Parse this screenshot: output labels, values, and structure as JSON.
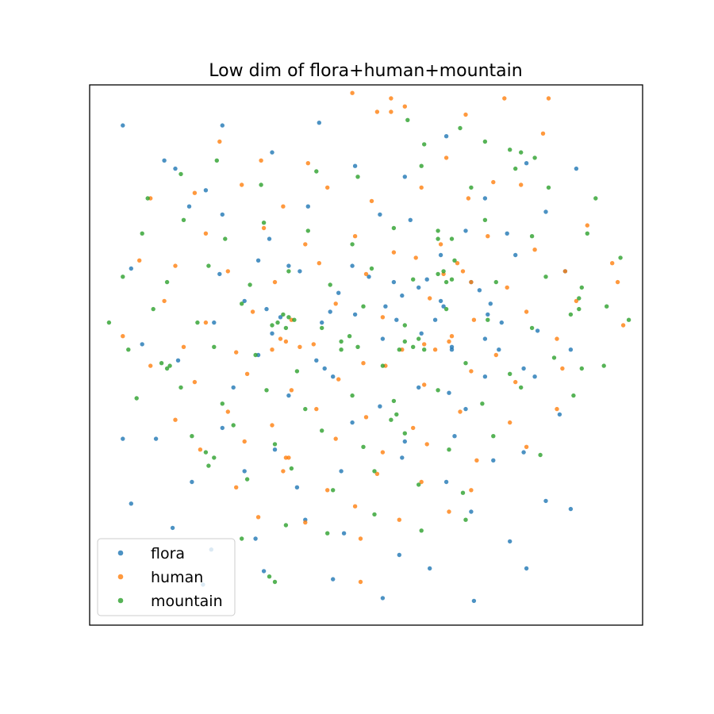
{
  "chart_data": {
    "type": "scatter",
    "title": "Low dim of flora+human+mountain",
    "xlabel": "",
    "ylabel": "",
    "xlim": [
      -1,
      1
    ],
    "ylim": [
      -1,
      1
    ],
    "grid": false,
    "axis_ticks": false,
    "legend_position": "lower-left",
    "series": [
      {
        "name": "flora",
        "color": "#1f77b4",
        "x": [
          -0.88,
          -0.73,
          -0.58,
          -0.34,
          -0.17,
          -0.04,
          0.14,
          0.29,
          0.43,
          0.58,
          0.76,
          0.16,
          -0.64,
          -0.52,
          -0.35,
          -0.21,
          0.05,
          0.36,
          0.51,
          0.65,
          -0.85,
          -0.53,
          -0.39,
          -0.24,
          0.01,
          0.38,
          0.54,
          0.72,
          -0.44,
          -0.13,
          0.28,
          0.49,
          -0.81,
          -0.68,
          -0.34,
          -0.15,
          0.06,
          0.31,
          0.43,
          0.61,
          0.74,
          -0.48,
          -0.28,
          -0.12,
          0.05,
          0.19,
          0.36,
          0.57,
          -0.76,
          -0.52,
          -0.33,
          -0.05,
          0.14,
          0.32,
          0.57,
          0.7,
          -0.63,
          -0.44,
          -0.25,
          -0.09,
          0.13,
          0.29,
          0.46,
          0.65,
          -0.85,
          -0.7,
          -0.56,
          -0.4,
          -0.22,
          -0.08,
          0.12,
          0.38,
          0.52,
          0.74,
          -0.59,
          -0.37,
          -0.12,
          0.06,
          0.23,
          0.39,
          0.58,
          -0.28,
          -0.1,
          0.1,
          0.27,
          0.45,
          0.62,
          -0.39,
          -0.18,
          0.2,
          0.43,
          -0.55,
          -0.36,
          -0.04,
          0.13,
          0.3,
          -0.31,
          -0.16,
          0.07,
          0.22,
          0.27,
          0.41,
          0.44,
          0.19,
          0.25,
          -0.05,
          0.11,
          0.31,
          0.48,
          -0.52,
          -0.69,
          -0.88
        ],
        "y": [
          0.85,
          0.72,
          0.61,
          0.75,
          0.86,
          0.7,
          0.66,
          0.81,
          0.58,
          0.71,
          0.69,
          0.5,
          0.55,
          0.52,
          0.43,
          0.55,
          0.52,
          0.46,
          0.45,
          0.53,
          0.32,
          0.3,
          0.35,
          0.31,
          0.29,
          0.27,
          0.37,
          0.31,
          0.2,
          0.16,
          0.18,
          0.12,
          0.04,
          -0.02,
          0.08,
          -0.05,
          0.06,
          0.03,
          0.06,
          -0.08,
          0.02,
          -0.12,
          -0.15,
          -0.08,
          -0.19,
          -0.12,
          -0.2,
          -0.05,
          -0.31,
          -0.27,
          -0.35,
          -0.25,
          -0.32,
          -0.3,
          -0.36,
          -0.22,
          -0.47,
          -0.43,
          -0.49,
          -0.43,
          -0.38,
          -0.47,
          -0.39,
          -0.54,
          -0.55,
          -0.64,
          -0.72,
          -0.68,
          -0.61,
          -0.66,
          -0.74,
          -0.58,
          -0.69,
          -0.57,
          -0.85,
          -0.8,
          -0.83,
          -0.9,
          -0.79,
          -0.91,
          -0.79,
          0.33,
          0.23,
          0.27,
          0.37,
          0.19,
          0.09,
          0.0,
          -0.02,
          0.08,
          -0.08,
          0.12,
          0.17,
          0.15,
          0.22,
          -0.14,
          0.14,
          0.12,
          0.18,
          0.28,
          0.2,
          0.24,
          0.15,
          0.25,
          0.13,
          0.33,
          0.13,
          0.02,
          0.02,
          0.85,
          0.69,
          -0.31
        ]
      },
      {
        "name": "human",
        "color": "#ff7f0e",
        "x": [
          -0.05,
          0.09,
          0.36,
          0.64,
          -0.53,
          -0.38,
          -0.21,
          0.29,
          0.46,
          -0.78,
          -0.62,
          -0.45,
          -0.3,
          -0.14,
          0.02,
          0.2,
          0.37,
          0.56,
          -0.58,
          -0.37,
          -0.22,
          -0.04,
          0.1,
          0.27,
          0.44,
          0.61,
          0.8,
          -0.82,
          -0.69,
          -0.5,
          -0.33,
          -0.17,
          0.0,
          0.18,
          0.35,
          0.51,
          0.72,
          0.89,
          -0.73,
          -0.58,
          -0.41,
          -0.27,
          -0.11,
          0.06,
          0.23,
          0.39,
          0.58,
          0.76,
          -0.88,
          -0.66,
          -0.47,
          -0.31,
          -0.19,
          -0.01,
          0.13,
          0.3,
          0.47,
          0.69,
          -0.78,
          -0.62,
          -0.43,
          -0.27,
          -0.1,
          0.07,
          0.21,
          0.38,
          0.54,
          0.71,
          -0.69,
          -0.5,
          -0.34,
          -0.18,
          0.0,
          0.17,
          0.34,
          0.52,
          0.69,
          -0.6,
          -0.44,
          -0.28,
          -0.11,
          0.06,
          0.22,
          0.4,
          0.58,
          -0.47,
          -0.3,
          -0.14,
          0.04,
          0.2,
          0.38,
          -0.39,
          -0.22,
          -0.04,
          0.12,
          0.3,
          -0.02,
          0.28,
          0.33,
          0.38,
          0.21,
          0.25,
          0.31,
          -0.24,
          -0.29,
          -0.34,
          0.14,
          0.09,
          0.04,
          0.5,
          0.93,
          0.66,
          -0.02,
          -0.29,
          0.91
        ],
        "y": [
          0.97,
          0.9,
          0.89,
          0.82,
          0.79,
          0.72,
          0.71,
          0.73,
          0.64,
          0.58,
          0.6,
          0.63,
          0.55,
          0.62,
          0.57,
          0.62,
          0.58,
          0.63,
          0.45,
          0.47,
          0.41,
          0.44,
          0.38,
          0.41,
          0.44,
          0.39,
          0.48,
          0.35,
          0.33,
          0.31,
          0.27,
          0.34,
          0.3,
          0.36,
          0.31,
          0.25,
          0.31,
          0.34,
          0.2,
          0.12,
          0.16,
          0.13,
          0.19,
          0.14,
          0.21,
          0.13,
          0.16,
          0.2,
          0.07,
          0.03,
          0.01,
          0.06,
          0.04,
          -0.03,
          0.02,
          0.05,
          0.0,
          0.06,
          -0.04,
          -0.1,
          -0.07,
          -0.13,
          -0.09,
          -0.04,
          -0.11,
          -0.06,
          -0.1,
          -0.05,
          -0.24,
          -0.21,
          -0.26,
          -0.2,
          -0.23,
          -0.27,
          -0.21,
          -0.25,
          -0.2,
          -0.35,
          -0.32,
          -0.38,
          -0.31,
          -0.36,
          -0.33,
          -0.39,
          -0.34,
          -0.49,
          -0.43,
          -0.5,
          -0.44,
          -0.47,
          -0.5,
          -0.6,
          -0.62,
          -0.56,
          -0.61,
          -0.58,
          -0.84,
          0.3,
          0.34,
          0.27,
          0.04,
          0.02,
          0.07,
          0.03,
          0.05,
          0.02,
          0.92,
          0.95,
          0.9,
          0.95,
          0.11,
          0.95,
          -0.68,
          -0.38,
          0.27
        ]
      },
      {
        "name": "mountain",
        "color": "#2ca02c",
        "x": [
          0.15,
          0.34,
          0.43,
          0.21,
          0.52,
          0.56,
          0.61,
          -0.79,
          -0.67,
          -0.54,
          -0.38,
          -0.18,
          -0.03,
          0.2,
          0.38,
          0.54,
          0.66,
          0.83,
          -0.81,
          -0.66,
          -0.51,
          -0.37,
          -0.21,
          -0.05,
          0.1,
          0.26,
          0.43,
          0.6,
          0.8,
          0.92,
          -0.88,
          -0.72,
          -0.57,
          -0.42,
          -0.28,
          -0.13,
          0.02,
          0.17,
          0.32,
          0.47,
          0.65,
          0.78,
          -0.93,
          -0.77,
          -0.61,
          -0.45,
          -0.3,
          -0.16,
          -0.01,
          0.14,
          0.29,
          0.44,
          0.6,
          0.77,
          0.95,
          -0.86,
          -0.71,
          -0.55,
          -0.4,
          -0.25,
          -0.09,
          0.06,
          0.21,
          0.36,
          0.52,
          0.68,
          0.86,
          -0.83,
          -0.67,
          -0.52,
          -0.36,
          -0.22,
          -0.05,
          0.1,
          0.26,
          0.42,
          0.56,
          0.75,
          -0.63,
          -0.48,
          -0.33,
          -0.16,
          -0.01,
          0.14,
          0.3,
          0.46,
          0.63,
          -0.57,
          -0.43,
          -0.27,
          -0.12,
          0.03,
          0.19,
          0.35,
          -0.45,
          -0.29,
          -0.14,
          0.03,
          0.2,
          0.36,
          -0.32,
          -0.29,
          -0.26,
          -0.34,
          -0.28,
          0.28,
          0.31,
          0.26,
          0.29,
          0.14,
          0.17,
          0.12,
          0.19,
          -0.06,
          -0.09,
          -0.03,
          0.87,
          0.77,
          0.74,
          0.78,
          -0.72,
          -0.74,
          -0.55,
          -0.58,
          -0.33,
          -0.35,
          0.26,
          0.31,
          0.09,
          0.11
        ],
        "y": [
          0.87,
          0.84,
          0.79,
          0.78,
          0.76,
          0.75,
          0.73,
          0.58,
          0.67,
          0.72,
          0.63,
          0.68,
          0.66,
          0.7,
          0.62,
          0.69,
          0.62,
          0.58,
          0.45,
          0.5,
          0.43,
          0.49,
          0.46,
          0.41,
          0.47,
          0.43,
          0.5,
          0.44,
          0.45,
          0.36,
          0.29,
          0.27,
          0.33,
          0.26,
          0.31,
          0.26,
          0.32,
          0.28,
          0.35,
          0.27,
          0.29,
          0.25,
          0.12,
          0.17,
          0.12,
          0.19,
          0.15,
          0.1,
          0.18,
          0.11,
          0.17,
          0.13,
          0.1,
          0.17,
          0.13,
          0.02,
          -0.04,
          0.03,
          0.0,
          -0.06,
          0.02,
          -0.04,
          0.02,
          -0.03,
          -0.07,
          -0.01,
          -0.04,
          -0.16,
          -0.12,
          -0.18,
          -0.13,
          -0.2,
          -0.15,
          -0.17,
          -0.13,
          -0.18,
          -0.12,
          -0.15,
          -0.3,
          -0.26,
          -0.33,
          -0.28,
          -0.34,
          -0.29,
          -0.35,
          -0.3,
          -0.37,
          -0.41,
          -0.46,
          -0.42,
          -0.5,
          -0.43,
          -0.48,
          -0.51,
          -0.68,
          -0.63,
          -0.66,
          -0.59,
          -0.65,
          -0.61,
          0.12,
          0.1,
          0.13,
          0.11,
          0.14,
          0.31,
          0.28,
          0.3,
          0.27,
          0.05,
          0.03,
          0.02,
          0.06,
          0.07,
          0.05,
          0.03,
          0.18,
          0.21,
          0.15,
          -0.05,
          -0.05,
          -0.03,
          -0.38,
          -0.36,
          -0.84,
          -0.82,
          0.46,
          0.43,
          -0.24,
          -0.22
        ]
      }
    ]
  }
}
